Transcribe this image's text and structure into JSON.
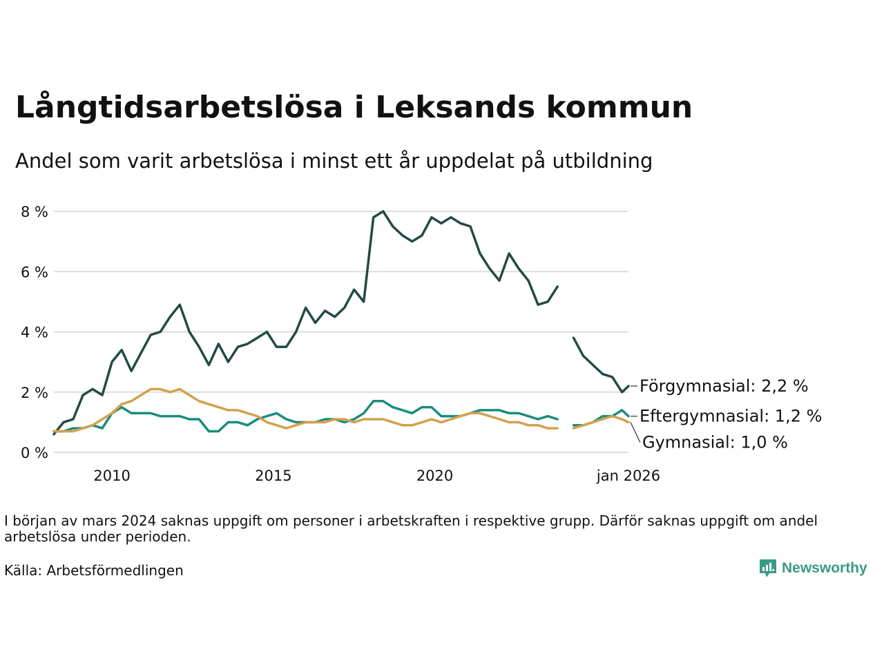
{
  "chart_data": {
    "type": "line",
    "title": "Långtidsarbetslösa i Leksands kommun",
    "subtitle": "Andel som varit arbetslösa i minst ett år uppdelat på utbildning",
    "xlabel": "",
    "ylabel": "",
    "xlim": [
      2008.2,
      2026.0
    ],
    "ylim": [
      0,
      8.5
    ],
    "y_ticks": [
      0,
      2,
      4,
      6,
      8
    ],
    "y_tick_labels": [
      "0 %",
      "2 %",
      "4 %",
      "6 %",
      "8 %"
    ],
    "x_ticks": [
      2010,
      2015,
      2020,
      2026
    ],
    "x_tick_labels": [
      "2010",
      "2015",
      "2020",
      "jan 2026"
    ],
    "grid": "horizontal",
    "x": [
      2008.2,
      2008.5,
      2008.8,
      2009.1,
      2009.4,
      2009.7,
      2010.0,
      2010.3,
      2010.6,
      2010.9,
      2011.2,
      2011.5,
      2011.8,
      2012.1,
      2012.4,
      2012.7,
      2013.0,
      2013.3,
      2013.6,
      2013.9,
      2014.2,
      2014.5,
      2014.8,
      2015.1,
      2015.4,
      2015.7,
      2016.0,
      2016.3,
      2016.6,
      2016.9,
      2017.2,
      2017.5,
      2017.8,
      2018.1,
      2018.4,
      2018.7,
      2019.0,
      2019.3,
      2019.6,
      2019.9,
      2020.2,
      2020.5,
      2020.8,
      2021.1,
      2021.4,
      2021.7,
      2022.0,
      2022.3,
      2022.6,
      2022.9,
      2023.2,
      2023.5,
      2023.8,
      2024.0,
      2024.3,
      2024.6,
      2024.9,
      2025.2,
      2025.5,
      2025.8,
      2026.0
    ],
    "series": [
      {
        "name": "Förgymnasial",
        "color": "#234a44",
        "end_label": "Förgymnasial: 2,2 %",
        "values": [
          0.6,
          1.0,
          1.1,
          1.9,
          2.1,
          1.9,
          3.0,
          3.4,
          2.7,
          3.3,
          3.9,
          4.0,
          4.5,
          4.9,
          4.0,
          3.5,
          2.9,
          3.6,
          3.0,
          3.5,
          3.6,
          3.8,
          4.0,
          3.5,
          3.5,
          4.0,
          4.8,
          4.3,
          4.7,
          4.5,
          4.8,
          5.4,
          5.0,
          7.8,
          8.0,
          7.5,
          7.2,
          7.0,
          7.2,
          7.8,
          7.6,
          7.8,
          7.6,
          7.5,
          6.6,
          6.1,
          5.7,
          6.6,
          6.1,
          5.7,
          4.9,
          5.0,
          5.5,
          null,
          3.8,
          3.2,
          2.9,
          2.6,
          2.5,
          2.0,
          2.2
        ]
      },
      {
        "name": "Eftergymnasial",
        "color": "#1a8c7c",
        "end_label": "Eftergymnasial: 1,2 %",
        "values": [
          0.7,
          0.7,
          0.8,
          0.8,
          0.9,
          0.8,
          1.3,
          1.5,
          1.3,
          1.3,
          1.3,
          1.2,
          1.2,
          1.2,
          1.1,
          1.1,
          0.7,
          0.7,
          1.0,
          1.0,
          0.9,
          1.1,
          1.2,
          1.3,
          1.1,
          1.0,
          1.0,
          1.0,
          1.1,
          1.1,
          1.0,
          1.1,
          1.3,
          1.7,
          1.7,
          1.5,
          1.4,
          1.3,
          1.5,
          1.5,
          1.2,
          1.2,
          1.2,
          1.3,
          1.4,
          1.4,
          1.4,
          1.3,
          1.3,
          1.2,
          1.1,
          1.2,
          1.1,
          null,
          0.9,
          0.9,
          1.0,
          1.2,
          1.2,
          1.4,
          1.2
        ]
      },
      {
        "name": "Gymnasial",
        "color": "#d4a04c",
        "end_label": "Gymnasial: 1,0 %",
        "values": [
          0.7,
          0.7,
          0.7,
          0.8,
          0.9,
          1.1,
          1.3,
          1.6,
          1.7,
          1.9,
          2.1,
          2.1,
          2.0,
          2.1,
          1.9,
          1.7,
          1.6,
          1.5,
          1.4,
          1.4,
          1.3,
          1.2,
          1.0,
          0.9,
          0.8,
          0.9,
          1.0,
          1.0,
          1.0,
          1.1,
          1.1,
          1.0,
          1.1,
          1.1,
          1.1,
          1.0,
          0.9,
          0.9,
          1.0,
          1.1,
          1.0,
          1.1,
          1.2,
          1.3,
          1.3,
          1.2,
          1.1,
          1.0,
          1.0,
          0.9,
          0.9,
          0.8,
          0.8,
          null,
          0.8,
          0.9,
          1.0,
          1.1,
          1.2,
          1.1,
          1.0
        ]
      }
    ]
  },
  "footnote": "I början av mars 2024 saknas uppgift om personer i arbetskraften i respektive grupp. Därför saknas uppgift om andel arbetslösa under perioden.",
  "source": "Källa: Arbetsförmedlingen",
  "brand": {
    "name": "Newsworthy",
    "logo_icon": "newsworthy-logo-icon",
    "color": "#3a9a8a"
  }
}
